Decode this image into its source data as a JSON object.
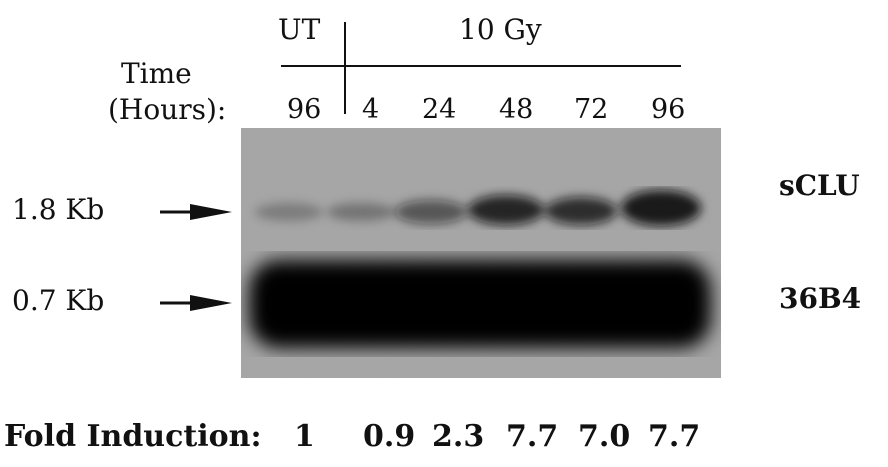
{
  "header": {
    "untreated_label": "UT",
    "treated_label": "10 Gy",
    "time_label_line1": "Time",
    "time_label_line2": "(Hours):"
  },
  "lanes": [
    {
      "time": "96",
      "fold": "1"
    },
    {
      "time": "4",
      "fold": "0.9"
    },
    {
      "time": "24",
      "fold": "2.3"
    },
    {
      "time": "48",
      "fold": "7.7"
    },
    {
      "time": "72",
      "fold": "7.0"
    },
    {
      "time": "96",
      "fold": "7.7"
    }
  ],
  "markers": [
    {
      "size_label": "1.8 Kb",
      "band_label": "sCLU"
    },
    {
      "size_label": "0.7 Kb",
      "band_label": "36B4"
    }
  ],
  "fold_induction_label": "Fold Induction:",
  "colors": {
    "text": "#111111",
    "background_blot": "#9a9a9a",
    "band": "#0b0b0b"
  }
}
